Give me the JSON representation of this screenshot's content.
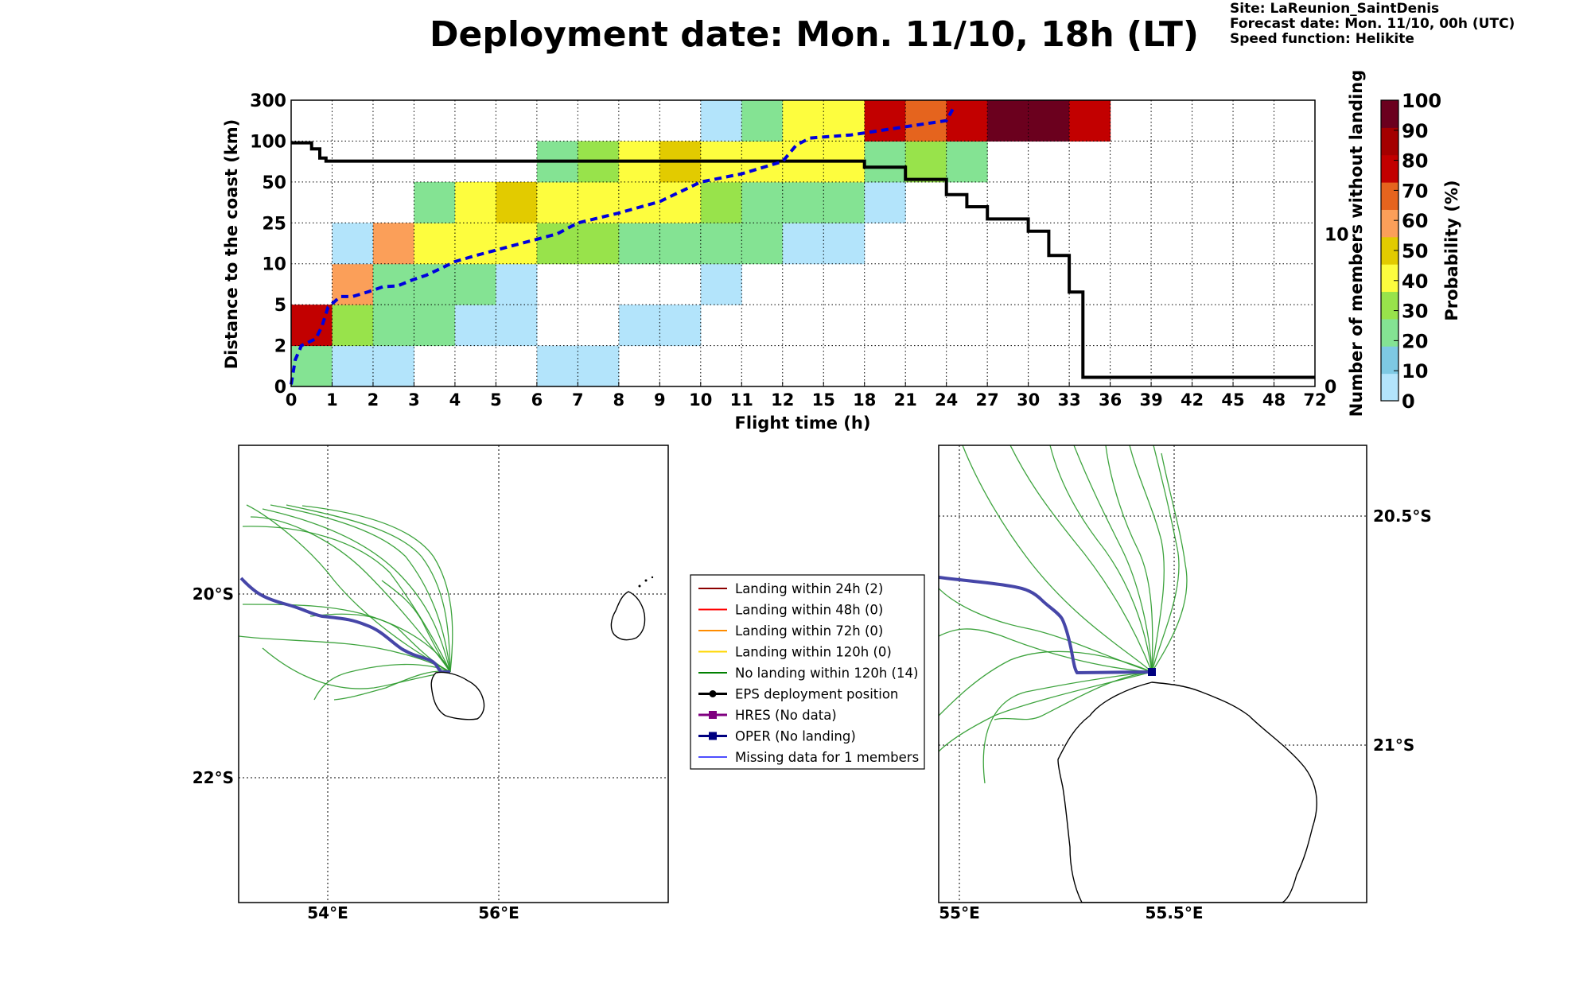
{
  "header": {
    "title": "Deployment date: Mon. 11/10, 18h (LT)",
    "site": "Site: LaReunion_SaintDenis",
    "forecast_date": "Forecast date: Mon. 11/10, 00h (UTC)",
    "speed_function": "Speed function: Helikite"
  },
  "chart_data": [
    {
      "type": "heatmap",
      "xlabel": "Flight time (h)",
      "ylabel": "Distance to the coast (km)",
      "ylabel_right": "Number of members without landing",
      "colorbar_label": "Probability (%)",
      "x_ticks": [
        "0",
        "1",
        "2",
        "3",
        "4",
        "5",
        "6",
        "7",
        "8",
        "9",
        "10",
        "11",
        "12",
        "15",
        "18",
        "21",
        "24",
        "27",
        "30",
        "33",
        "36",
        "39",
        "42",
        "45",
        "48",
        "72"
      ],
      "y_ticks": [
        "0",
        "2",
        "5",
        "10",
        "25",
        "50",
        "100",
        "300"
      ],
      "y_right_ticks": [
        {
          "label": "0",
          "value": 0
        },
        {
          "label": "10",
          "value": 10
        }
      ],
      "colorbar_ticks": [
        "0",
        "10",
        "20",
        "30",
        "40",
        "50",
        "60",
        "70",
        "80",
        "90",
        "100"
      ],
      "colorbar_colors": [
        "#b3e4fb",
        "#7ec9e3",
        "#84e393",
        "#98e34b",
        "#fdfd3e",
        "#e2cb00",
        "#fb9f59",
        "#e5641e",
        "#c20000",
        "#a40000",
        "#6b001e"
      ],
      "grid": true,
      "cells": [
        {
          "x": 0,
          "y": 0,
          "p": 10
        },
        {
          "x": 1,
          "y": 0,
          "p": 0
        },
        {
          "x": 2,
          "y": 0,
          "p": 0
        },
        {
          "x": 6,
          "y": 0,
          "p": 0
        },
        {
          "x": 7,
          "y": 0,
          "p": 0
        },
        {
          "x": 0,
          "y": 1,
          "p": 70
        },
        {
          "x": 1,
          "y": 1,
          "p": 20
        },
        {
          "x": 2,
          "y": 1,
          "p": 10
        },
        {
          "x": 3,
          "y": 1,
          "p": 10
        },
        {
          "x": 4,
          "y": 1,
          "p": 0
        },
        {
          "x": 5,
          "y": 1,
          "p": 0
        },
        {
          "x": 8,
          "y": 1,
          "p": 0
        },
        {
          "x": 9,
          "y": 1,
          "p": 0
        },
        {
          "x": 1,
          "y": 2,
          "p": 50
        },
        {
          "x": 2,
          "y": 2,
          "p": 10
        },
        {
          "x": 3,
          "y": 2,
          "p": 10
        },
        {
          "x": 4,
          "y": 2,
          "p": 10
        },
        {
          "x": 5,
          "y": 2,
          "p": 0
        },
        {
          "x": 10,
          "y": 2,
          "p": 0
        },
        {
          "x": 1,
          "y": 3,
          "p": 0
        },
        {
          "x": 2,
          "y": 3,
          "p": 50
        },
        {
          "x": 3,
          "y": 3,
          "p": 30
        },
        {
          "x": 4,
          "y": 3,
          "p": 30
        },
        {
          "x": 5,
          "y": 3,
          "p": 30
        },
        {
          "x": 6,
          "y": 3,
          "p": 20
        },
        {
          "x": 7,
          "y": 3,
          "p": 20
        },
        {
          "x": 8,
          "y": 3,
          "p": 10
        },
        {
          "x": 9,
          "y": 3,
          "p": 10
        },
        {
          "x": 10,
          "y": 3,
          "p": 10
        },
        {
          "x": 11,
          "y": 3,
          "p": 10
        },
        {
          "x": 12,
          "y": 3,
          "p": 0
        },
        {
          "x": 13,
          "y": 3,
          "p": 0
        },
        {
          "x": 3,
          "y": 4,
          "p": 10
        },
        {
          "x": 4,
          "y": 4,
          "p": 30
        },
        {
          "x": 5,
          "y": 4,
          "p": 40
        },
        {
          "x": 6,
          "y": 4,
          "p": 30
        },
        {
          "x": 7,
          "y": 4,
          "p": 30
        },
        {
          "x": 8,
          "y": 4,
          "p": 30
        },
        {
          "x": 9,
          "y": 4,
          "p": 30
        },
        {
          "x": 10,
          "y": 4,
          "p": 20
        },
        {
          "x": 11,
          "y": 4,
          "p": 10
        },
        {
          "x": 12,
          "y": 4,
          "p": 10
        },
        {
          "x": 13,
          "y": 4,
          "p": 10
        },
        {
          "x": 14,
          "y": 4,
          "p": 0
        },
        {
          "x": 6,
          "y": 5,
          "p": 10
        },
        {
          "x": 7,
          "y": 5,
          "p": 20
        },
        {
          "x": 8,
          "y": 5,
          "p": 30
        },
        {
          "x": 9,
          "y": 5,
          "p": 40
        },
        {
          "x": 10,
          "y": 5,
          "p": 30
        },
        {
          "x": 11,
          "y": 5,
          "p": 30
        },
        {
          "x": 12,
          "y": 5,
          "p": 30
        },
        {
          "x": 13,
          "y": 5,
          "p": 30
        },
        {
          "x": 14,
          "y": 5,
          "p": 10
        },
        {
          "x": 15,
          "y": 5,
          "p": 20
        },
        {
          "x": 16,
          "y": 5,
          "p": 10
        },
        {
          "x": 10,
          "y": 6,
          "p": 0
        },
        {
          "x": 11,
          "y": 6,
          "p": 10
        },
        {
          "x": 12,
          "y": 6,
          "p": 30
        },
        {
          "x": 13,
          "y": 6,
          "p": 30
        },
        {
          "x": 14,
          "y": 6,
          "p": 70
        },
        {
          "x": 15,
          "y": 6,
          "p": 60
        },
        {
          "x": 16,
          "y": 6,
          "p": 70
        },
        {
          "x": 17,
          "y": 6,
          "p": 100
        },
        {
          "x": 18,
          "y": 6,
          "p": 90
        },
        {
          "x": 19,
          "y": 6,
          "p": 70
        }
      ],
      "members_without_landing": {
        "x": [
          0,
          0.5,
          0.5,
          0.7,
          0.7,
          0.85,
          0.85,
          18,
          18,
          21,
          21,
          24,
          24,
          25.5,
          25.5,
          27,
          27,
          30,
          30,
          31.5,
          31.5,
          33,
          33,
          34,
          34,
          72
        ],
        "y": [
          16,
          16,
          15.6,
          15.6,
          15,
          15,
          14.8,
          14.8,
          14.4,
          14.4,
          13.6,
          13.6,
          12.6,
          12.6,
          11.8,
          11.8,
          11,
          11,
          10.2,
          10.2,
          8.6,
          8.6,
          6.2,
          6.2,
          0.6,
          0.6
        ]
      },
      "median_distance": {
        "x": [
          0,
          0.1,
          0.25,
          0.6,
          0.75,
          0.9,
          1.2,
          1.5,
          1.9,
          2.25,
          2.6,
          3,
          3.3,
          3.6,
          4,
          4.5,
          5,
          5.5,
          6,
          6.5,
          7,
          7.5,
          8,
          9,
          10,
          11,
          12,
          13,
          14,
          15,
          17,
          19,
          21,
          24,
          24.5
        ],
        "y": [
          0.1,
          1.3,
          2,
          2.5,
          3.4,
          4.8,
          6,
          6,
          6.6,
          7.2,
          7.3,
          8.1,
          8.6,
          9.3,
          10.8,
          13,
          15,
          17,
          19,
          21,
          25,
          28,
          31,
          38,
          50,
          60,
          75,
          95,
          115,
          120,
          130,
          150,
          170,
          200,
          260
        ]
      }
    },
    {
      "type": "map",
      "x_ticks": [
        "54°E",
        "56°E"
      ],
      "y_ticks": [
        "20°S",
        "22°S"
      ]
    },
    {
      "type": "map",
      "x_ticks": [
        "55°E",
        "55.5°E"
      ],
      "y_ticks": [
        "20.5°S",
        "21°S"
      ]
    }
  ],
  "legend": [
    {
      "label": "Landing within 24h (2)",
      "color": "#8b0000",
      "marker": "none"
    },
    {
      "label": "Landing within 48h (0)",
      "color": "#ff0000",
      "marker": "none"
    },
    {
      "label": "Landing within 72h (0)",
      "color": "#ff8c00",
      "marker": "none"
    },
    {
      "label": "Landing within 120h (0)",
      "color": "#ffd700",
      "marker": "none"
    },
    {
      "label": "No landing within 120h (14)",
      "color": "#008000",
      "marker": "none"
    },
    {
      "label": "EPS deployment position",
      "color": "#000000",
      "marker": "dot"
    },
    {
      "label": "HRES (No data)",
      "color": "#800080",
      "marker": "square"
    },
    {
      "label": "OPER (No landing)",
      "color": "#000080",
      "marker": "square"
    },
    {
      "label": "Missing data for 1 members",
      "color": "#4d4dff",
      "marker": "none"
    }
  ],
  "colors": {
    "member_track": "#2a9a2a",
    "oper_track": "#4646a8",
    "median_line": "#0000dd"
  }
}
